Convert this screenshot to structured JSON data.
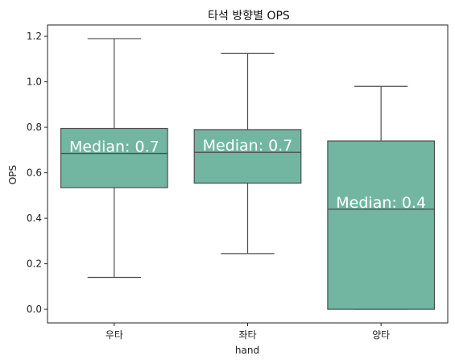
{
  "chart_data": {
    "type": "box",
    "title": "타석 방향별 OPS",
    "xlabel": "hand",
    "ylabel": "OPS",
    "ylim": [
      -0.06,
      1.25
    ],
    "yticks": [
      0.0,
      0.2,
      0.4,
      0.6,
      0.8,
      1.0,
      1.2
    ],
    "ytick_labels": [
      "0.0",
      "0.2",
      "0.4",
      "0.6",
      "0.8",
      "1.0",
      "1.2"
    ],
    "categories": [
      "우타",
      "좌타",
      "양타"
    ],
    "box_color": "#72b6a1",
    "line_color": "#4d4d4d",
    "boxes": [
      {
        "category": "우타",
        "whisker_low": 0.14,
        "q1": 0.535,
        "median": 0.685,
        "q3": 0.795,
        "whisker_high": 1.19,
        "median_label": "Median: 0.7"
      },
      {
        "category": "좌타",
        "whisker_low": 0.245,
        "q1": 0.555,
        "median": 0.69,
        "q3": 0.79,
        "whisker_high": 1.125,
        "median_label": "Median: 0.7"
      },
      {
        "category": "양타",
        "whisker_low": 0.0,
        "q1": 0.0,
        "median": 0.44,
        "q3": 0.74,
        "whisker_high": 0.98,
        "median_label": "Median: 0.4"
      }
    ]
  }
}
